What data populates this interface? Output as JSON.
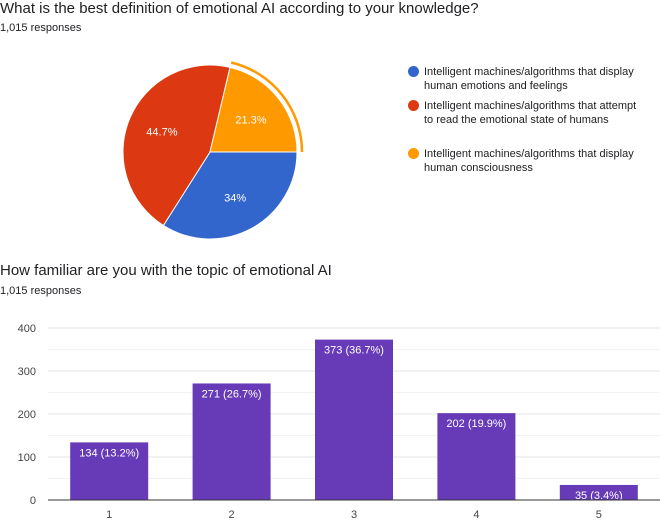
{
  "chart_data": [
    {
      "type": "pie",
      "title": "What is the best definition of emotional AI according to your knowledge?",
      "subtitle": "1,015 responses",
      "legend_placement": "right",
      "slices": [
        {
          "name": "Intelligent machines/algorithms that display human emotions and feelings",
          "value": 34,
          "label": "34%",
          "color": "#3366cc"
        },
        {
          "name": "Intelligent machines/algorithms that attempt to read the emotional state of humans",
          "value": 44.7,
          "label": "44.7%",
          "color": "#dc3912"
        },
        {
          "name": "Intelligent machines/algorithms that display human consciousness",
          "value": 21.3,
          "label": "21.3%",
          "color": "#ff9900"
        }
      ]
    },
    {
      "type": "bar",
      "title": "How familiar are you with the topic of emotional AI",
      "subtitle": "1,015 responses",
      "categories": [
        "1",
        "2",
        "3",
        "4",
        "5"
      ],
      "values": [
        134,
        271,
        373,
        202,
        35
      ],
      "data_labels": [
        "134 (13.2%)",
        "271 (26.7%)",
        "373 (36.7%)",
        "202 (19.9%)",
        "35 (3.4%)"
      ],
      "ylim": [
        0,
        400
      ],
      "yticks": [
        "0",
        "100",
        "200",
        "300",
        "400"
      ],
      "grid": true,
      "color": "#673ab7"
    }
  ]
}
